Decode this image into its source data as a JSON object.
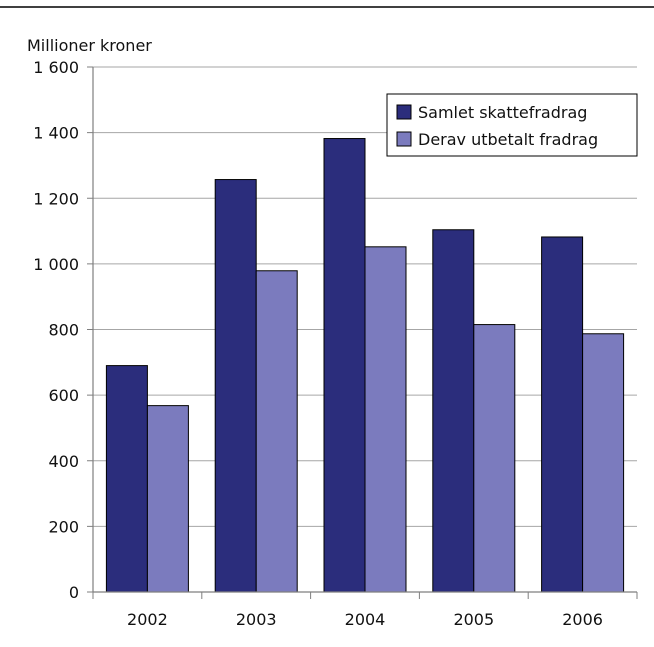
{
  "chart_data": {
    "type": "bar",
    "title": "",
    "ylabel": "Millioner kroner",
    "xlabel": "",
    "categories": [
      "2002",
      "2003",
      "2004",
      "2005",
      "2006"
    ],
    "series": [
      {
        "name": "Samlet skattefradrag",
        "color": "#2b2d7c",
        "values": [
          690,
          1257,
          1382,
          1104,
          1082
        ]
      },
      {
        "name": "Derav utbetalt fradrag",
        "color": "#7b7bbe",
        "values": [
          568,
          979,
          1052,
          815,
          787
        ]
      }
    ],
    "ylim": [
      0,
      1600
    ],
    "yticks": [
      0,
      200,
      400,
      600,
      800,
      1000,
      1200,
      1400,
      1600
    ],
    "ytick_labels": [
      "0",
      "200",
      "400",
      "600",
      "800",
      "1 000",
      "1 200",
      "1 400",
      "1 600"
    ],
    "grid": true,
    "legend_position": "top-right"
  }
}
